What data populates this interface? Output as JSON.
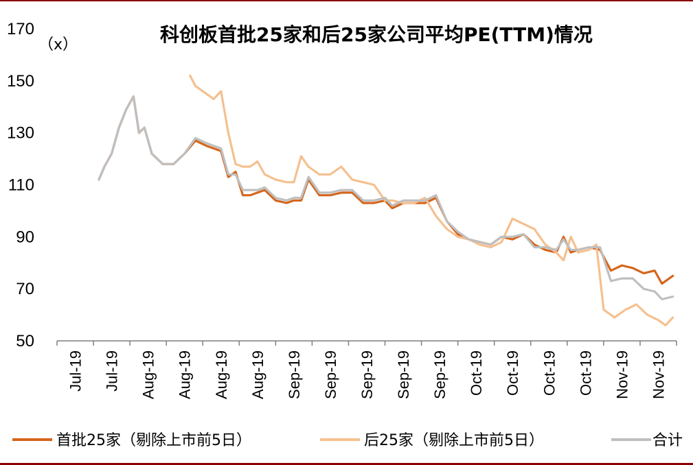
{
  "chart_data": {
    "type": "line",
    "title": "科创板首批25家和后25家公司平均PE(TTM)情况",
    "unit_label": "（x）",
    "ylim": [
      50,
      170
    ],
    "yticks": [
      50,
      70,
      90,
      110,
      130,
      150,
      170
    ],
    "xlim": [
      0,
      17
    ],
    "x_tick_labels": [
      "Jul-19",
      "Jul-19",
      "Aug-19",
      "Aug-19",
      "Aug-19",
      "Aug-19",
      "Sep-19",
      "Sep-19",
      "Sep-19",
      "Sep-19",
      "Sep-19",
      "Oct-19",
      "Oct-19",
      "Oct-19",
      "Oct-19",
      "Nov-19",
      "Nov-19"
    ],
    "grid": false,
    "legend_position": "bottom",
    "series": [
      {
        "name": "首批25家（剔除上市前5日）",
        "color": "#d4661c",
        "x": [
          1.15,
          1.3,
          1.5,
          1.7,
          1.9,
          2.1,
          2.25,
          2.4,
          2.6,
          2.9,
          3.2,
          3.5,
          3.8,
          4.1,
          4.3,
          4.5,
          4.7,
          4.9,
          5.1,
          5.3,
          5.5,
          5.7,
          6.0,
          6.3,
          6.5,
          6.7,
          6.9,
          7.2,
          7.5,
          7.8,
          8.1,
          8.4,
          8.7,
          9.0,
          9.2,
          9.5,
          9.8,
          10.1,
          10.4,
          10.7,
          11.0,
          11.3,
          11.6,
          11.9,
          12.2,
          12.5,
          12.8,
          13.1,
          13.4,
          13.7,
          13.9,
          14.1,
          14.3,
          14.6,
          14.9,
          15.2,
          15.5,
          15.8,
          16.1,
          16.4,
          16.6,
          16.9
        ],
        "y": [
          112,
          117,
          122,
          132,
          139,
          144,
          130,
          132,
          122,
          118,
          118,
          122,
          127,
          125,
          124,
          123,
          113,
          115,
          106,
          106,
          107,
          108,
          104,
          103,
          104,
          104,
          112,
          106,
          106,
          107,
          107,
          103,
          103,
          104,
          101,
          103,
          103,
          103,
          105,
          96,
          91,
          89,
          88,
          87,
          90,
          89,
          91,
          87,
          85,
          84,
          90,
          84,
          85,
          86,
          85,
          77,
          79,
          78,
          76,
          77,
          72,
          75
        ]
      },
      {
        "name": "后25家（剔除上市前5日）",
        "color": "#f5c08f",
        "x": [
          3.65,
          3.8,
          4.1,
          4.3,
          4.5,
          4.7,
          4.9,
          5.1,
          5.3,
          5.5,
          5.7,
          6.0,
          6.3,
          6.5,
          6.7,
          6.9,
          7.2,
          7.5,
          7.8,
          8.1,
          8.4,
          8.7,
          9.0,
          9.2,
          9.5,
          9.8,
          10.1,
          10.4,
          10.7,
          11.0,
          11.3,
          11.6,
          11.9,
          12.2,
          12.5,
          12.8,
          13.1,
          13.4,
          13.7,
          13.9,
          14.1,
          14.3,
          14.6,
          14.8,
          15.0,
          15.3,
          15.6,
          15.9,
          16.2,
          16.5,
          16.7,
          16.9
        ],
        "y": [
          152,
          148,
          145,
          143,
          146,
          130,
          118,
          117,
          117,
          119,
          114,
          112,
          111,
          111,
          121,
          117,
          114,
          114,
          117,
          112,
          111,
          110,
          104,
          104,
          103,
          103,
          105,
          98,
          93,
          90,
          89,
          87,
          86,
          88,
          97,
          95,
          93,
          87,
          84,
          81,
          90,
          84,
          85,
          87,
          62,
          59,
          62,
          64,
          60,
          58,
          56,
          59
        ]
      },
      {
        "name": "合计",
        "color": "#bfbfbf",
        "x": [
          1.15,
          1.3,
          1.5,
          1.7,
          1.9,
          2.1,
          2.25,
          2.4,
          2.6,
          2.9,
          3.2,
          3.5,
          3.8,
          4.1,
          4.3,
          4.5,
          4.7,
          4.9,
          5.1,
          5.3,
          5.5,
          5.7,
          6.0,
          6.3,
          6.5,
          6.7,
          6.9,
          7.2,
          7.5,
          7.8,
          8.1,
          8.4,
          8.7,
          9.0,
          9.2,
          9.5,
          9.8,
          10.1,
          10.4,
          10.7,
          11.0,
          11.3,
          11.6,
          11.9,
          12.2,
          12.5,
          12.8,
          13.1,
          13.4,
          13.7,
          13.9,
          14.1,
          14.3,
          14.6,
          14.9,
          15.2,
          15.5,
          15.8,
          16.1,
          16.4,
          16.6,
          16.9
        ],
        "y": [
          112,
          117,
          122,
          132,
          139,
          144,
          130,
          132,
          122,
          118,
          118,
          122,
          128,
          126,
          125,
          124,
          114,
          114,
          108,
          108,
          108,
          109,
          105,
          104,
          105,
          105,
          113,
          107,
          107,
          108,
          108,
          104,
          104,
          105,
          102,
          104,
          104,
          104,
          106,
          96,
          92,
          89,
          88,
          87,
          90,
          90,
          91,
          86,
          86,
          85,
          89,
          85,
          85,
          86,
          86,
          73,
          74,
          74,
          70,
          69,
          66,
          67
        ]
      }
    ]
  }
}
